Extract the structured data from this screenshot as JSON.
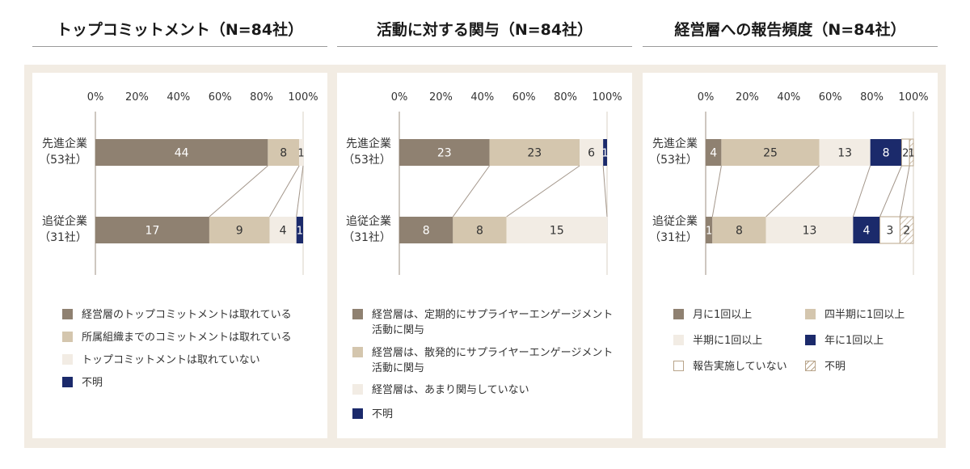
{
  "colors": {
    "c1": "#8f8171",
    "c2": "#d4c6ae",
    "c3": "#f2ece4",
    "navy": "#1b2a6b",
    "white": "#ffffff",
    "hatch": "#b8a48a"
  },
  "ticks": [
    "0%",
    "20%",
    "40%",
    "60%",
    "80%",
    "100%"
  ],
  "chart_data": [
    {
      "type": "bar",
      "stacked": "100%",
      "orientation": "horizontal",
      "title": "トップコミットメント（N=84社）",
      "categories": [
        {
          "name": "先進企業",
          "n": "（53社）"
        },
        {
          "name": "追従企業",
          "n": "（31社）"
        }
      ],
      "xlim": [
        0,
        100
      ],
      "series": [
        {
          "name": "経営層のトップコミットメントは取れている",
          "color": "c1",
          "values": [
            44,
            17
          ]
        },
        {
          "name": "所属組織までのコミットメントは取れている",
          "color": "c2",
          "values": [
            8,
            9
          ]
        },
        {
          "name": "トップコミットメントは取れていない",
          "color": "c3",
          "values": [
            1,
            4
          ]
        },
        {
          "name": "不明",
          "color": "navy",
          "values": [
            0,
            1
          ]
        }
      ]
    },
    {
      "type": "bar",
      "stacked": "100%",
      "orientation": "horizontal",
      "title": "活動に対する関与（N=84社）",
      "categories": [
        {
          "name": "先進企業",
          "n": "（53社）"
        },
        {
          "name": "追従企業",
          "n": "（31社）"
        }
      ],
      "xlim": [
        0,
        100
      ],
      "series": [
        {
          "name": "経営層は、定期的にサプライヤーエンゲージメント活動に関与",
          "color": "c1",
          "values": [
            23,
            8
          ]
        },
        {
          "name": "経営層は、散発的にサプライヤーエンゲージメント活動に関与",
          "color": "c2",
          "values": [
            23,
            8
          ]
        },
        {
          "name": "経営層は、あまり関与していない",
          "color": "c3",
          "values": [
            6,
            15
          ]
        },
        {
          "name": "不明",
          "color": "navy",
          "values": [
            1,
            0
          ]
        }
      ]
    },
    {
      "type": "bar",
      "stacked": "100%",
      "orientation": "horizontal",
      "title": "経営層への報告頻度（N=84社）",
      "categories": [
        {
          "name": "先進企業",
          "n": "（53社）"
        },
        {
          "name": "追従企業",
          "n": "（31社）"
        }
      ],
      "xlim": [
        0,
        100
      ],
      "series": [
        {
          "name": "月に1回以上",
          "color": "c1",
          "values": [
            4,
            1
          ]
        },
        {
          "name": "四半期に1回以上",
          "color": "c2",
          "values": [
            25,
            8
          ]
        },
        {
          "name": "半期に1回以上",
          "color": "c3",
          "values": [
            13,
            13
          ]
        },
        {
          "name": "年に1回以上",
          "color": "navy",
          "values": [
            8,
            4
          ]
        },
        {
          "name": "報告実施していない",
          "color": "white",
          "values": [
            2,
            3
          ]
        },
        {
          "name": "不明",
          "color": "hatch",
          "values": [
            1,
            2
          ]
        }
      ]
    }
  ]
}
